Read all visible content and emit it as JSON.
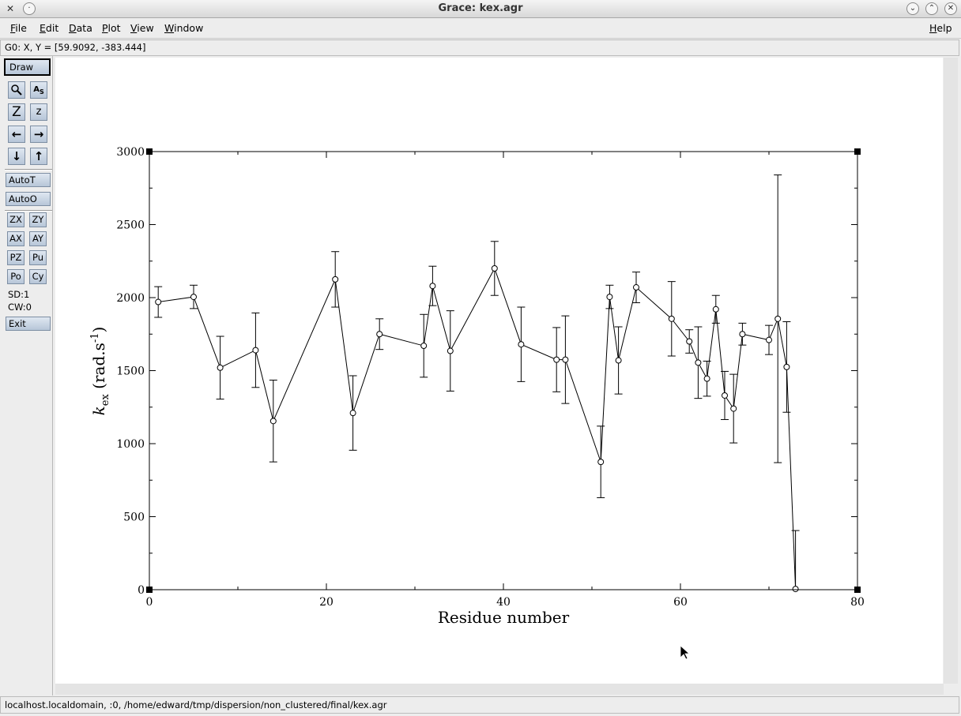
{
  "window": {
    "title": "Grace: kex.agr"
  },
  "menubar": {
    "items": [
      {
        "label": "File",
        "key": "F",
        "rest": "ile"
      },
      {
        "label": "Edit",
        "key": "E",
        "rest": "dit"
      },
      {
        "label": "Data",
        "key": "D",
        "rest": "ata"
      },
      {
        "label": "Plot",
        "key": "P",
        "rest": "lot"
      },
      {
        "label": "View",
        "key": "V",
        "rest": "iew"
      },
      {
        "label": "Window",
        "key": "W",
        "rest": "indow"
      }
    ],
    "help": {
      "key": "H",
      "rest": "elp"
    }
  },
  "coord_readout": "G0: X, Y = [59.9092, -383.444]",
  "toolbar": {
    "draw": "Draw",
    "autot": "AutoT",
    "autoo": "AutoO",
    "zx": "ZX",
    "zy": "ZY",
    "ax": "AX",
    "ay": "AY",
    "pz": "PZ",
    "pu": "Pu",
    "po": "Po",
    "cy": "Cy",
    "sd": "SD:1",
    "cw": "CW:0",
    "exit": "Exit",
    "icons": [
      "zoom-icon",
      "autoscale-text-icon",
      "zoom-in-z-icon",
      "zoom-out-z-icon",
      "arrow-left-icon",
      "arrow-right-icon",
      "arrow-down-icon",
      "arrow-up-icon"
    ]
  },
  "status": "localhost.localdomain, :0, /home/edward/tmp/dispersion/non_clustered/final/kex.agr",
  "chart_data": {
    "type": "scatter",
    "xlabel": "Residue number",
    "ylabel": "k_ex (rad.s^-1)",
    "xlim": [
      0,
      80
    ],
    "ylim": [
      0,
      3000
    ],
    "xticks": [
      "0",
      "20",
      "40",
      "60",
      "80"
    ],
    "yticks": [
      "0",
      "500",
      "1000",
      "1500",
      "2000",
      "2500",
      "3000"
    ],
    "line_color": "#000000",
    "series": [
      {
        "x": [
          1,
          5,
          8,
          12,
          14,
          21,
          23,
          26,
          31,
          32,
          34,
          39,
          42,
          46,
          47,
          51,
          52,
          53,
          55,
          59,
          61,
          62,
          63,
          64,
          65,
          66,
          67,
          70,
          71,
          72,
          73
        ],
        "y": [
          1970,
          2005,
          1520,
          1640,
          1155,
          2125,
          1210,
          1750,
          1670,
          2080,
          1635,
          2200,
          1680,
          1575,
          1575,
          875,
          2005,
          1570,
          2070,
          1855,
          1700,
          1555,
          1445,
          1920,
          1330,
          1240,
          1750,
          1710,
          1855,
          1525,
          5
        ],
        "err": [
          105,
          80,
          215,
          255,
          280,
          190,
          255,
          105,
          215,
          135,
          275,
          185,
          255,
          220,
          300,
          245,
          80,
          230,
          105,
          255,
          80,
          245,
          120,
          95,
          165,
          235,
          75,
          100,
          985,
          310,
          400
        ]
      }
    ]
  }
}
